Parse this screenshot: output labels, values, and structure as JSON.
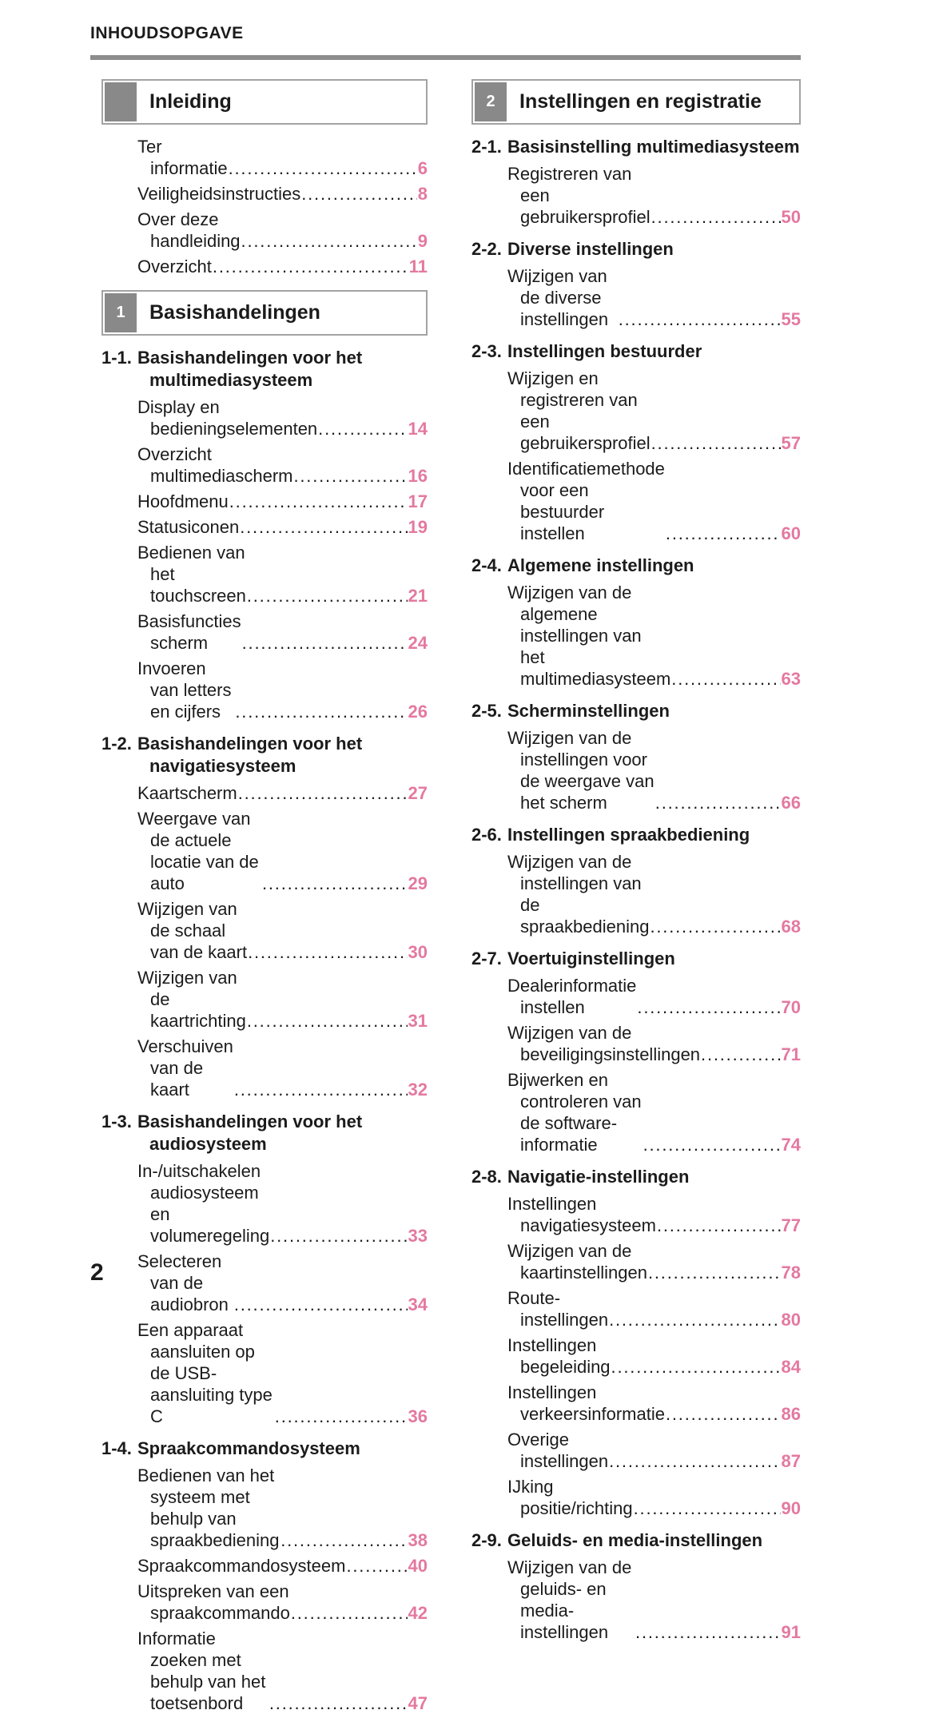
{
  "header": {
    "title": "INHOUDSOPGAVE"
  },
  "footer": {
    "page_number": "2"
  },
  "colors": {
    "accent_pink": "#e479a0",
    "tab_gray": "#898989",
    "rule_gray": "#8d8d8d",
    "box_border": "#a3a3a3"
  },
  "columns": [
    {
      "blocks": [
        {
          "type": "chapter",
          "number": "",
          "title": "Inleiding"
        },
        {
          "type": "entries",
          "items": [
            {
              "label": "Ter informatie",
              "page": "6"
            },
            {
              "label": "Veiligheidsinstructies",
              "page": "8"
            },
            {
              "label": "Over deze handleiding",
              "page": "9"
            },
            {
              "label": "Overzicht",
              "page": "11"
            }
          ]
        },
        {
          "type": "chapter",
          "number": "1",
          "title": "Basishandelingen"
        },
        {
          "type": "section",
          "number": "1-1.",
          "title": "Basishandelingen voor het multimediasysteem"
        },
        {
          "type": "entries",
          "items": [
            {
              "label": "Display en bedieningselementen",
              "page": "14"
            },
            {
              "label": "Overzicht multimediascherm",
              "page": "16"
            },
            {
              "label": "Hoofdmenu",
              "page": "17"
            },
            {
              "label": "Statusiconen",
              "page": "19"
            },
            {
              "label": "Bedienen van het touchscreen",
              "page": "21"
            },
            {
              "label": "Basisfuncties scherm",
              "page": "24"
            },
            {
              "label": "Invoeren van letters en cijfers",
              "page": "26"
            }
          ]
        },
        {
          "type": "section",
          "number": "1-2.",
          "title": "Basishandelingen voor het navigatiesysteem"
        },
        {
          "type": "entries",
          "items": [
            {
              "label": "Kaartscherm",
              "page": "27"
            },
            {
              "label": "Weergave van de actuele locatie van de auto",
              "page": "29"
            },
            {
              "label": "Wijzigen van de schaal van de kaart",
              "page": "30"
            },
            {
              "label": "Wijzigen van de kaartrichting",
              "page": "31"
            },
            {
              "label": "Verschuiven van de kaart",
              "page": "32"
            }
          ]
        },
        {
          "type": "section",
          "number": "1-3.",
          "title": "Basishandelingen voor het audiosysteem"
        },
        {
          "type": "entries",
          "items": [
            {
              "label": "In-/uitschakelen audiosysteem en volumeregeling",
              "page": "33"
            },
            {
              "label": "Selecteren van de audiobron",
              "page": "34"
            },
            {
              "label": "Een apparaat aansluiten op de USB-aansluiting type C",
              "page": "36"
            }
          ]
        },
        {
          "type": "section",
          "number": "1-4.",
          "title": "Spraakcommandosysteem"
        },
        {
          "type": "entries",
          "items": [
            {
              "label": "Bedienen van het systeem met behulp van spraakbediening",
              "page": "38"
            },
            {
              "label": "Spraakcommandosysteem",
              "page": "40"
            },
            {
              "label": "Uitspreken van een spraakcommando",
              "page": "42"
            },
            {
              "label": "Informatie zoeken met behulp van het toetsenbord",
              "page": "47"
            }
          ]
        }
      ]
    },
    {
      "blocks": [
        {
          "type": "chapter",
          "number": "2",
          "title": "Instellingen en registratie"
        },
        {
          "type": "section",
          "number": "2-1.",
          "title": "Basisinstelling multimediasysteem"
        },
        {
          "type": "entries",
          "items": [
            {
              "label": "Registreren van een gebruikersprofiel",
              "page": "50"
            }
          ]
        },
        {
          "type": "section",
          "number": "2-2.",
          "title": "Diverse instellingen"
        },
        {
          "type": "entries",
          "items": [
            {
              "label": "Wijzigen van de diverse instellingen",
              "page": "55"
            }
          ]
        },
        {
          "type": "section",
          "number": "2-3.",
          "title": "Instellingen bestuurder"
        },
        {
          "type": "entries",
          "items": [
            {
              "label": "Wijzigen en registreren van een gebruikersprofiel",
              "page": "57"
            },
            {
              "label": "Identificatiemethode voor een bestuurder instellen",
              "page": "60"
            }
          ]
        },
        {
          "type": "section",
          "number": "2-4.",
          "title": "Algemene instellingen"
        },
        {
          "type": "entries",
          "items": [
            {
              "label": "Wijzigen van de algemene instellingen van het multimediasysteem",
              "page": "63"
            }
          ]
        },
        {
          "type": "section",
          "number": "2-5.",
          "title": "Scherminstellingen"
        },
        {
          "type": "entries",
          "items": [
            {
              "label": "Wijzigen van de instellingen voor de weergave van het scherm",
              "page": "66"
            }
          ]
        },
        {
          "type": "section",
          "number": "2-6.",
          "title": "Instellingen spraakbediening"
        },
        {
          "type": "entries",
          "items": [
            {
              "label": "Wijzigen van de instellingen van de spraakbediening",
              "page": "68"
            }
          ]
        },
        {
          "type": "section",
          "number": "2-7.",
          "title": "Voertuiginstellingen"
        },
        {
          "type": "entries",
          "items": [
            {
              "label": "Dealerinformatie instellen",
              "page": "70"
            },
            {
              "label": "Wijzigen van de beveiligingsinstellingen",
              "page": "71"
            },
            {
              "label": "Bijwerken en controleren van de software-informatie",
              "page": "74"
            }
          ]
        },
        {
          "type": "section",
          "number": "2-8.",
          "title": "Navigatie-instellingen"
        },
        {
          "type": "entries",
          "items": [
            {
              "label": "Instellingen navigatiesysteem",
              "page": "77"
            },
            {
              "label": "Wijzigen van de kaartinstellingen",
              "page": "78"
            },
            {
              "label": "Route-instellingen",
              "page": "80"
            },
            {
              "label": "Instellingen begeleiding",
              "page": "84"
            },
            {
              "label": "Instellingen verkeersinformatie",
              "page": "86"
            },
            {
              "label": "Overige instellingen",
              "page": "87"
            },
            {
              "label": "IJking positie/richting",
              "page": "90"
            }
          ]
        },
        {
          "type": "section",
          "number": "2-9.",
          "title": "Geluids- en media-instellingen"
        },
        {
          "type": "entries",
          "items": [
            {
              "label": "Wijzigen van de geluids- en media-instellingen",
              "page": "91"
            }
          ]
        }
      ]
    }
  ]
}
